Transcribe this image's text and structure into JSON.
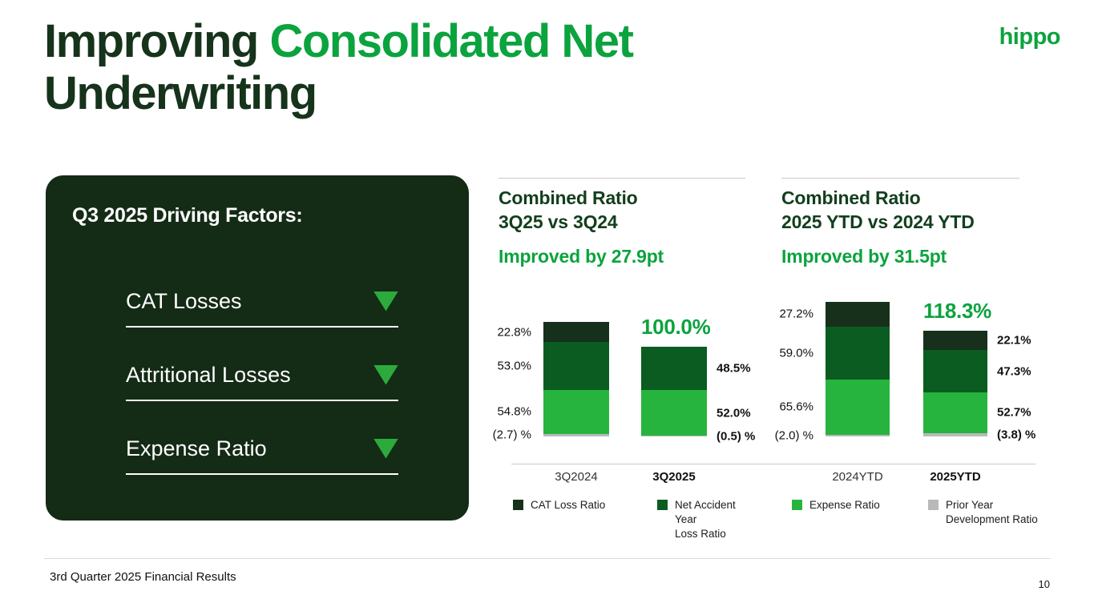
{
  "slide": {
    "title": {
      "part1": "Improving",
      "part2": "Consolidated Net",
      "part3": "Underwriting"
    },
    "logo_text": "hippo",
    "footer": {
      "left": "3rd Quarter 2025 Financial Results",
      "page": "10"
    }
  },
  "driving_factors": {
    "heading": "Q3 2025 Driving Factors:",
    "items": [
      {
        "label": "CAT Losses",
        "trend": "down"
      },
      {
        "label": "Attritional Losses",
        "trend": "down"
      },
      {
        "label": "Expense Ratio",
        "trend": "down"
      }
    ]
  },
  "legend": [
    {
      "label": "CAT Loss Ratio"
    },
    {
      "label": "Net Accident\nYear\nLoss Ratio"
    },
    {
      "label": "Expense Ratio"
    },
    {
      "label": "Prior Year\nDevelopment Ratio"
    }
  ],
  "colors": {
    "title_dark": "#16331b",
    "header_dark": "#123f1c",
    "accent_green": "#0ba33e",
    "panel_bg": "#142b16",
    "triangle": "#2cab3c",
    "cat_loss": "#17301b",
    "net_accident": "#0a5c20",
    "expense": "#27b43e",
    "prior_year": "#b9b9b9",
    "axis": "#c9c9c9"
  },
  "chart_data": [
    {
      "type": "bar",
      "stacked": true,
      "title_line1": "Combined Ratio",
      "title_line2": "3Q25 vs 3Q24",
      "subtitle": "Improved by 27.9pt",
      "categories": [
        "3Q2024",
        "3Q2025"
      ],
      "category_emphasis": [
        false,
        true
      ],
      "series": [
        {
          "name": "CAT Loss Ratio",
          "values": [
            22.8,
            0.0
          ]
        },
        {
          "name": "Net Accident Year Loss Ratio",
          "values": [
            53.0,
            48.5
          ]
        },
        {
          "name": "Expense Ratio",
          "values": [
            54.8,
            52.0
          ]
        },
        {
          "name": "Prior Year Development Ratio",
          "values": [
            -2.7,
            -0.5
          ]
        }
      ],
      "totals": [
        127.9,
        100.0
      ],
      "total_label": "100.0%",
      "bar_labels": [
        {
          "side": "left",
          "labels": [
            "22.8%",
            "53.0%",
            "54.8%",
            "(2.7) %"
          ]
        },
        {
          "side": "right",
          "labels": [
            null,
            "48.5%",
            "52.0%",
            "(0.5) %"
          ]
        }
      ]
    },
    {
      "type": "bar",
      "stacked": true,
      "title_line1": "Combined Ratio",
      "title_line2": "2025 YTD vs 2024 YTD",
      "subtitle": "Improved by 31.5pt",
      "categories": [
        "2024YTD",
        "2025YTD"
      ],
      "category_emphasis": [
        false,
        true
      ],
      "series": [
        {
          "name": "CAT Loss Ratio",
          "values": [
            27.2,
            22.1
          ]
        },
        {
          "name": "Net Accident Year Loss Ratio",
          "values": [
            59.0,
            47.3
          ]
        },
        {
          "name": "Expense Ratio",
          "values": [
            65.6,
            52.7
          ]
        },
        {
          "name": "Prior Year Development Ratio",
          "values": [
            -2.0,
            -3.8
          ]
        }
      ],
      "totals": [
        149.8,
        118.3
      ],
      "total_label": "118.3%",
      "bar_labels": [
        {
          "side": "left",
          "labels": [
            "27.2%",
            "59.0%",
            "65.6%",
            "(2.0) %"
          ]
        },
        {
          "side": "right",
          "labels": [
            "22.1%",
            "47.3%",
            "52.7%",
            "(3.8) %"
          ]
        }
      ]
    }
  ]
}
